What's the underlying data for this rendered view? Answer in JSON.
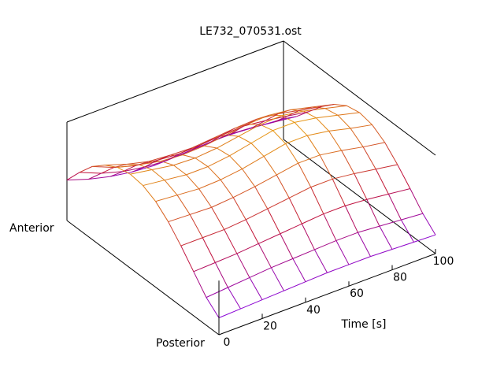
{
  "chart_data": {
    "type": "surface",
    "title": "LE732_070531.ost",
    "xlabel": "Time [s]",
    "y_axis_end_labels": [
      "Anterior",
      "Posterior"
    ],
    "xlim": [
      0,
      100
    ],
    "x_ticks": [
      0,
      20,
      40,
      60,
      80,
      100
    ],
    "x_tick_labels": [
      "0",
      "20",
      "40",
      "60",
      "80",
      "100"
    ],
    "grid": false,
    "colormap": [
      "#7b00ff",
      "#c0103a",
      "#e89a10"
    ],
    "surface_profiles": [
      {
        "x": 0,
        "profile": [
          0.36,
          0.55,
          0.72,
          0.84,
          0.92,
          0.95,
          0.93,
          0.86,
          0.74,
          0.58,
          0.4,
          0.22,
          0.1
        ]
      },
      {
        "x": 10,
        "profile": [
          0.28,
          0.45,
          0.62,
          0.76,
          0.86,
          0.91,
          0.9,
          0.84,
          0.73,
          0.58,
          0.41,
          0.24,
          0.11
        ]
      },
      {
        "x": 20,
        "profile": [
          0.22,
          0.38,
          0.55,
          0.7,
          0.81,
          0.87,
          0.87,
          0.82,
          0.72,
          0.58,
          0.42,
          0.26,
          0.12
        ]
      },
      {
        "x": 30,
        "profile": [
          0.18,
          0.34,
          0.52,
          0.68,
          0.79,
          0.86,
          0.87,
          0.83,
          0.74,
          0.6,
          0.44,
          0.28,
          0.13
        ]
      },
      {
        "x": 40,
        "profile": [
          0.16,
          0.32,
          0.5,
          0.67,
          0.8,
          0.88,
          0.9,
          0.86,
          0.77,
          0.63,
          0.46,
          0.29,
          0.14
        ]
      },
      {
        "x": 50,
        "profile": [
          0.17,
          0.33,
          0.51,
          0.69,
          0.83,
          0.92,
          0.95,
          0.91,
          0.81,
          0.66,
          0.48,
          0.3,
          0.15
        ]
      },
      {
        "x": 60,
        "profile": [
          0.18,
          0.34,
          0.53,
          0.71,
          0.86,
          0.96,
          1.0,
          0.96,
          0.85,
          0.69,
          0.5,
          0.31,
          0.15
        ]
      },
      {
        "x": 70,
        "profile": [
          0.19,
          0.35,
          0.54,
          0.72,
          0.87,
          0.97,
          1.0,
          0.96,
          0.85,
          0.69,
          0.5,
          0.31,
          0.15
        ]
      },
      {
        "x": 80,
        "profile": [
          0.18,
          0.33,
          0.51,
          0.69,
          0.84,
          0.93,
          0.96,
          0.92,
          0.81,
          0.66,
          0.48,
          0.29,
          0.14
        ]
      },
      {
        "x": 90,
        "profile": [
          0.16,
          0.3,
          0.47,
          0.64,
          0.78,
          0.87,
          0.9,
          0.86,
          0.76,
          0.62,
          0.45,
          0.27,
          0.13
        ]
      },
      {
        "x": 100,
        "profile": [
          0.14,
          0.27,
          0.43,
          0.59,
          0.72,
          0.81,
          0.84,
          0.81,
          0.72,
          0.58,
          0.42,
          0.25,
          0.12
        ]
      }
    ]
  }
}
